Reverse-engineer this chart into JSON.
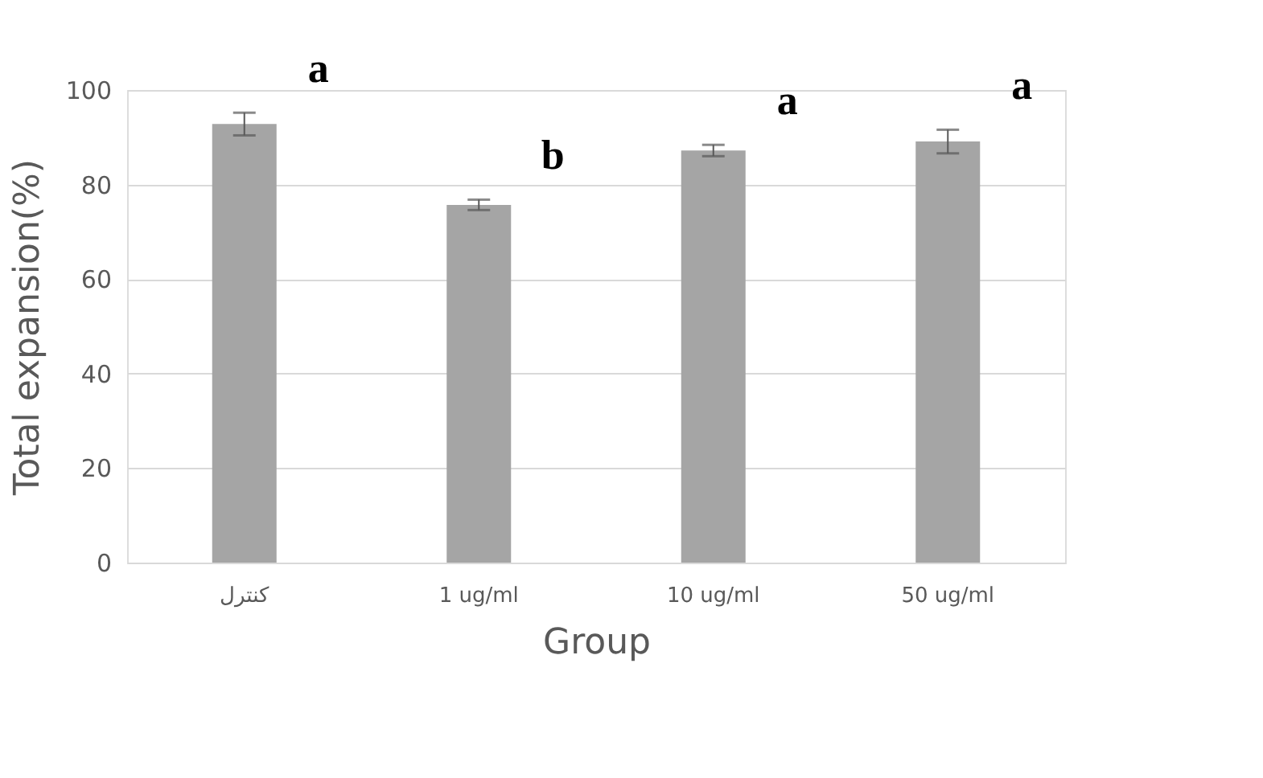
{
  "chart_data": {
    "type": "bar",
    "xlabel": "Group",
    "ylabel": "Total expansion(%)",
    "categories": [
      "كنترل",
      "1 ug/ml",
      "10 ug/ml",
      "50 ug/ml"
    ],
    "series": [
      {
        "color": "#a5a5a5",
        "values": [
          92.8,
          75.7,
          87.2,
          89.1
        ],
        "errors": [
          2.4,
          1.1,
          1.2,
          2.5
        ]
      }
    ],
    "ylim": [
      0,
      100
    ],
    "yticks": [
      0,
      20,
      40,
      60,
      80,
      100
    ],
    "grid": "y",
    "annotations": [
      "a",
      "b",
      "a",
      "a"
    ]
  }
}
